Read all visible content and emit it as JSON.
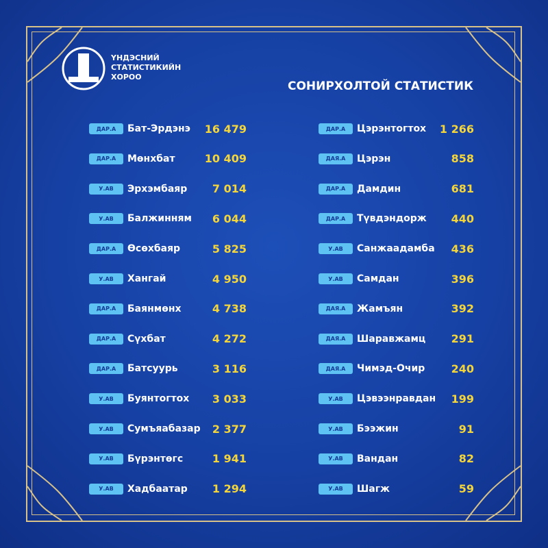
{
  "header": {
    "org_lines": [
      "ҮНДЭСНИЙ",
      "СТАТИСТИКИЙН",
      "ХОРОО"
    ],
    "title": "СОНИРХОЛТОЙ СТАТИСТИК"
  },
  "columns": [
    {
      "rows": [
        {
          "tag": "ДАР.А",
          "name": "Бат-Эрдэнэ",
          "value": "16 479"
        },
        {
          "tag": "ДАР.А",
          "name": "Мөнхбат",
          "value": "10 409"
        },
        {
          "tag": "У.АВ",
          "name": "Эрхэмбаяр",
          "value": "7 014"
        },
        {
          "tag": "У.АВ",
          "name": "Балжинням",
          "value": "6 044"
        },
        {
          "tag": "ДАР.А",
          "name": "Өсөхбаяр",
          "value": "5 825"
        },
        {
          "tag": "У.АВ",
          "name": "Хангай",
          "value": "4 950"
        },
        {
          "tag": "ДАР.А",
          "name": "Баянмөнх",
          "value": "4 738"
        },
        {
          "tag": "ДАР.А",
          "name": "Сүхбат",
          "value": "4 272"
        },
        {
          "tag": "ДАР.А",
          "name": "Батсуурь",
          "value": "3 116"
        },
        {
          "tag": "У.АВ",
          "name": "Буянтогтох",
          "value": "3 033"
        },
        {
          "tag": "У.АВ",
          "name": "Сумъяабазар",
          "value": "2 377"
        },
        {
          "tag": "У.АВ",
          "name": "Бүрэнтөгс",
          "value": "1 941"
        },
        {
          "tag": "У.АВ",
          "name": "Хадбаатар",
          "value": "1 294"
        }
      ]
    },
    {
      "rows": [
        {
          "tag": "ДАР.А",
          "name": "Цэрэнтогтох",
          "value": "1 266"
        },
        {
          "tag": "ДАЯ.А",
          "name": "Цэрэн",
          "value": "858"
        },
        {
          "tag": "ДАР.А",
          "name": "Дамдин",
          "value": "681"
        },
        {
          "tag": "ДАР.А",
          "name": "Түвдэндорж",
          "value": "440"
        },
        {
          "tag": "У.АВ",
          "name": "Санжаадамба",
          "value": "436"
        },
        {
          "tag": "У.АВ",
          "name": "Самдан",
          "value": "396"
        },
        {
          "tag": "ДАЯ.А",
          "name": "Жамъян",
          "value": "392"
        },
        {
          "tag": "ДАЯ.А",
          "name": "Шаравжамц",
          "value": "291"
        },
        {
          "tag": "ДАЯ.А",
          "name": "Чимэд-Очир",
          "value": "240"
        },
        {
          "tag": "У.АВ",
          "name": "Цэвээнравдан",
          "value": "199"
        },
        {
          "tag": "У.АВ",
          "name": "Бээжин",
          "value": "91"
        },
        {
          "tag": "У.АВ",
          "name": "Вандан",
          "value": "82"
        },
        {
          "tag": "У.АВ",
          "name": "Шагж",
          "value": "59"
        }
      ]
    }
  ]
}
